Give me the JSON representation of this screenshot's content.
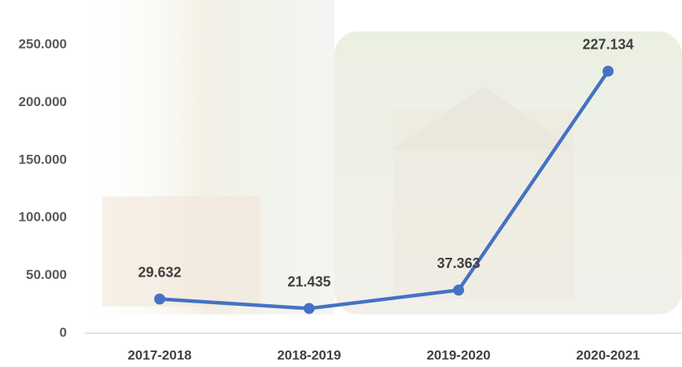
{
  "chart_data": {
    "type": "line",
    "categories": [
      "2017-2018",
      "2018-2019",
      "2019-2020",
      "2020-2021"
    ],
    "series": [
      {
        "name": null,
        "color": "#4472c4",
        "values": [
          29632,
          21435,
          37363,
          227134
        ],
        "value_labels": [
          "29.632",
          "21.435",
          "37.363",
          "227.134"
        ]
      }
    ],
    "ylim": [
      0,
      250000
    ],
    "yticks": [
      0,
      {
        "value": 50000,
        "label": "50.000"
      },
      {
        "value": 100000,
        "label": "100.000"
      },
      {
        "value": 150000,
        "label": "150.000"
      },
      {
        "value": 200000,
        "label": "200.000"
      },
      {
        "value": 250000,
        "label": "250.000"
      }
    ]
  }
}
